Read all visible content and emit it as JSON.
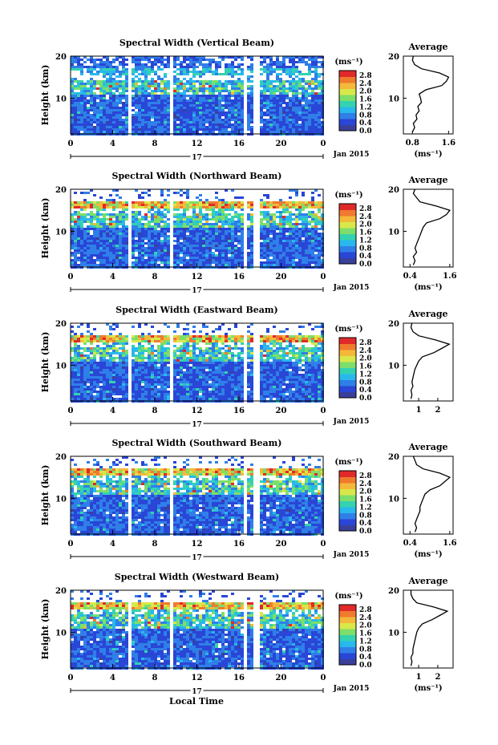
{
  "colorbar": {
    "unit": "(ms⁻¹)",
    "ticks": [
      "2.8",
      "2.4",
      "2.0",
      "1.6",
      "1.2",
      "0.8",
      "0.4",
      "0.0"
    ],
    "stops": [
      "#3a3f9a",
      "#2946d6",
      "#2f7fe8",
      "#29b8ec",
      "#34d2b0",
      "#7ede6a",
      "#d8e84a",
      "#f4b83a",
      "#f07a2e",
      "#e02a2a"
    ]
  },
  "x_axis": {
    "tick_labels": [
      "0",
      "4",
      "8",
      "12",
      "16",
      "20",
      "0"
    ],
    "date_day": "17",
    "month_year": "Jan 2015",
    "xlabel": "Local Time"
  },
  "chart_data": [
    {
      "type": "heatmap",
      "title": "Spectral Width (Vertical Beam)",
      "ylabel": "Height (km)",
      "y_ticks": [
        "20",
        "10"
      ],
      "ylim": [
        1.5,
        20
      ],
      "xlim": [
        0,
        24
      ],
      "gaps_hours": [
        [
          5.2,
          5.7
        ],
        [
          9.2,
          9.6
        ],
        [
          16.3,
          16.6
        ],
        [
          17.3,
          17.7
        ]
      ],
      "profile": {
        "title": "Average",
        "x_ticks": [
          "0.8",
          "1.6"
        ],
        "xlim": [
          0.6,
          1.7
        ],
        "xlabel": "(ms⁻¹)",
        "height_km": [
          2,
          3,
          4,
          5,
          6,
          7,
          8,
          9,
          10,
          11,
          12,
          13,
          14,
          15,
          16,
          17,
          18,
          19,
          20
        ],
        "values": [
          0.8,
          0.85,
          0.82,
          0.9,
          0.88,
          0.95,
          0.92,
          1.0,
          0.98,
          0.95,
          1.1,
          1.45,
          1.55,
          1.6,
          1.4,
          1.0,
          0.85,
          0.8,
          0.82
        ]
      }
    },
    {
      "type": "heatmap",
      "title": "Spectral Width (Northward Beam)",
      "ylabel": "Height (km)",
      "y_ticks": [
        "20",
        "10"
      ],
      "ylim": [
        1.5,
        20
      ],
      "xlim": [
        0,
        24
      ],
      "gaps_hours": [
        [
          5.2,
          5.7
        ],
        [
          9.2,
          9.6
        ],
        [
          16.3,
          16.6
        ],
        [
          17.3,
          17.7
        ]
      ],
      "profile": {
        "title": "Average",
        "x_ticks": [
          "0.4",
          "1.6"
        ],
        "xlim": [
          0.2,
          1.7
        ],
        "xlabel": "(ms⁻¹)",
        "height_km": [
          2,
          3,
          4,
          5,
          6,
          7,
          8,
          9,
          10,
          11,
          12,
          13,
          14,
          15,
          16,
          17,
          18,
          19,
          20
        ],
        "values": [
          0.5,
          0.55,
          0.5,
          0.6,
          0.55,
          0.6,
          0.65,
          0.7,
          0.75,
          0.8,
          0.9,
          1.3,
          1.5,
          1.6,
          1.2,
          0.7,
          0.6,
          0.5,
          0.55
        ]
      }
    },
    {
      "type": "heatmap",
      "title": "Spectral Width (Eastward Beam)",
      "ylabel": "Height (km)",
      "y_ticks": [
        "20",
        "10"
      ],
      "ylim": [
        1.5,
        20
      ],
      "xlim": [
        0,
        24
      ],
      "gaps_hours": [
        [
          5.2,
          5.7
        ],
        [
          9.2,
          9.6
        ],
        [
          16.3,
          16.6
        ],
        [
          17.3,
          17.7
        ]
      ],
      "profile": {
        "title": "Average",
        "x_ticks": [
          "1",
          "2"
        ],
        "xlim": [
          0.2,
          2.8
        ],
        "xlabel": "",
        "height_km": [
          2,
          3,
          4,
          5,
          6,
          7,
          8,
          9,
          10,
          11,
          12,
          13,
          14,
          15,
          16,
          17,
          18,
          19,
          20
        ],
        "values": [
          0.6,
          0.65,
          0.6,
          0.7,
          0.65,
          0.7,
          0.75,
          0.8,
          0.9,
          1.0,
          1.2,
          1.8,
          2.2,
          2.6,
          1.9,
          1.0,
          0.7,
          0.6,
          0.65
        ]
      }
    },
    {
      "type": "heatmap",
      "title": "Spectral Width (Southward Beam)",
      "ylabel": "Height (km)",
      "y_ticks": [
        "20",
        "10"
      ],
      "ylim": [
        1.5,
        20
      ],
      "xlim": [
        0,
        24
      ],
      "gaps_hours": [
        [
          5.2,
          5.7
        ],
        [
          9.2,
          9.6
        ],
        [
          16.3,
          16.6
        ],
        [
          17.3,
          17.7
        ]
      ],
      "profile": {
        "title": "Average",
        "x_ticks": [
          "0.4",
          "1.6"
        ],
        "xlim": [
          0.2,
          1.7
        ],
        "xlabel": "(ms⁻¹)",
        "height_km": [
          2,
          3,
          4,
          5,
          6,
          7,
          8,
          9,
          10,
          11,
          12,
          13,
          14,
          15,
          16,
          17,
          18,
          19,
          20
        ],
        "values": [
          0.55,
          0.6,
          0.55,
          0.6,
          0.65,
          0.7,
          0.7,
          0.75,
          0.8,
          0.85,
          1.0,
          1.3,
          1.45,
          1.6,
          1.3,
          0.8,
          0.6,
          0.55,
          0.5
        ]
      }
    },
    {
      "type": "heatmap",
      "title": "Spectral Width (Westward Beam)",
      "ylabel": "Height (km)",
      "y_ticks": [
        "20",
        "10"
      ],
      "ylim": [
        1.5,
        20
      ],
      "xlim": [
        0,
        24
      ],
      "gaps_hours": [
        [
          5.2,
          5.7
        ],
        [
          9.2,
          9.6
        ],
        [
          16.3,
          16.6
        ],
        [
          17.3,
          17.7
        ]
      ],
      "profile": {
        "title": "Average",
        "x_ticks": [
          "1",
          "2"
        ],
        "xlim": [
          0.2,
          2.8
        ],
        "xlabel": "(ms⁻¹)",
        "height_km": [
          2,
          3,
          4,
          5,
          6,
          7,
          8,
          9,
          10,
          11,
          12,
          13,
          14,
          15,
          16,
          17,
          18,
          19,
          20
        ],
        "values": [
          0.6,
          0.65,
          0.6,
          0.7,
          0.7,
          0.75,
          0.8,
          0.85,
          0.9,
          1.0,
          1.2,
          1.7,
          2.1,
          2.5,
          1.8,
          0.9,
          0.7,
          0.6,
          0.6
        ]
      }
    }
  ]
}
